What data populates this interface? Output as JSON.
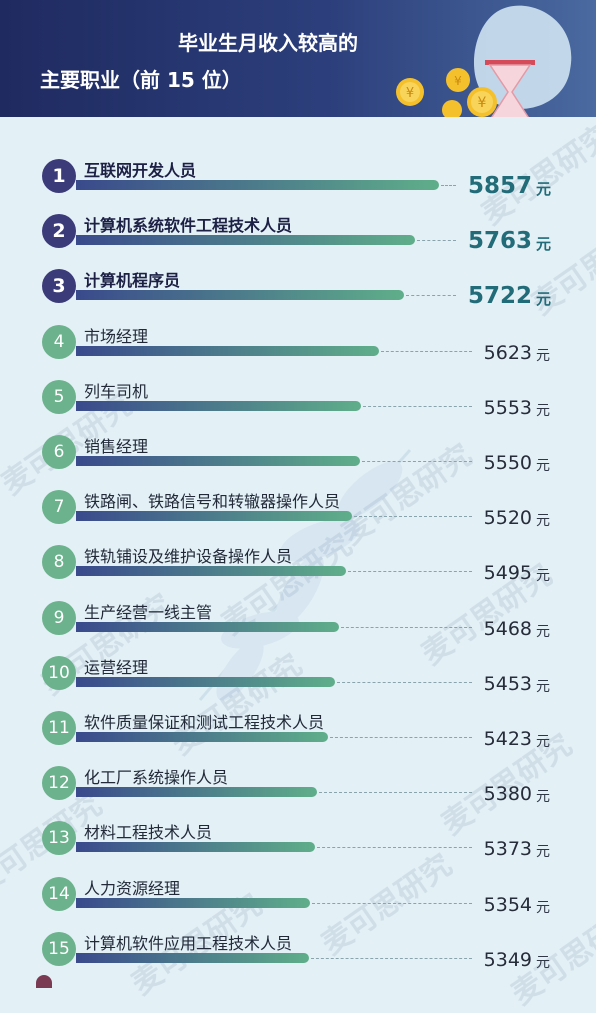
{
  "header": {
    "line1": "毕业生月收入较高的",
    "line2": "主要职业（前 15 位）"
  },
  "watermark": "麦可思研究",
  "unit": "元",
  "colors": {
    "top_circle": "#3b3b7a",
    "regular_circle": "#6bb28d",
    "bar_start": "#3a4a8c",
    "bar_end": "#5fae8a"
  },
  "chart_data": {
    "type": "bar",
    "orientation": "horizontal",
    "categories": [
      "互联网开发人员",
      "计算机系统软件工程技术人员",
      "计算机程序员",
      "市场经理",
      "列车司机",
      "销售经理",
      "铁路闸、铁路信号和转辙器操作人员",
      "铁轨铺设及维护设备操作人员",
      "生产经营一线主管",
      "运营经理",
      "软件质量保证和测试工程技术人员",
      "化工厂系统操作人员",
      "材料工程技术人员",
      "人力资源经理",
      "计算机软件应用工程技术人员"
    ],
    "ranks": [
      "1",
      "2",
      "3",
      "4",
      "5",
      "6",
      "7",
      "8",
      "9",
      "10",
      "11",
      "12",
      "13",
      "14",
      "15"
    ],
    "values": [
      5857,
      5763,
      5722,
      5623,
      5553,
      5550,
      5520,
      5495,
      5468,
      5453,
      5423,
      5380,
      5373,
      5354,
      5349
    ],
    "highlight_top": 3
  }
}
